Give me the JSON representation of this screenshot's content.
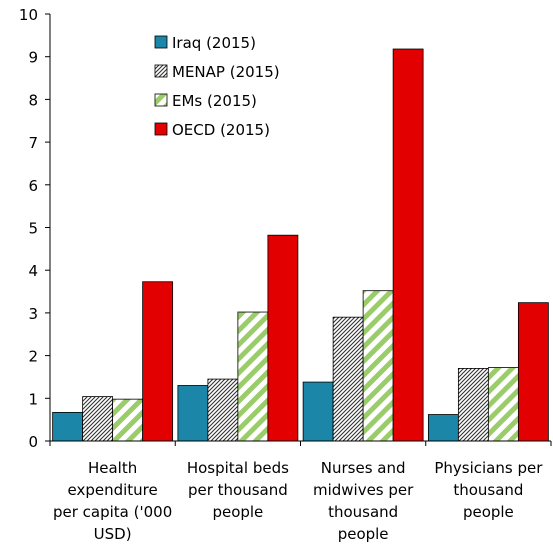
{
  "chart_data": {
    "type": "bar",
    "title": "",
    "xlabel": "",
    "ylabel": "",
    "ylim": [
      0,
      10
    ],
    "yticks": [
      "0",
      "1",
      "2",
      "3",
      "4",
      "5",
      "6",
      "7",
      "8",
      "9",
      "10"
    ],
    "grid": false,
    "legend_position": "top-left",
    "categories": [
      [
        "Health",
        "expenditure",
        "per capita ('000",
        "USD)"
      ],
      [
        "Hospital beds",
        "per thousand",
        "people"
      ],
      [
        "Nurses and",
        "midwives per",
        "thousand",
        "people"
      ],
      [
        "Physicians per",
        "thousand",
        "people"
      ]
    ],
    "series": [
      {
        "name": "Iraq (2015)",
        "values": [
          0.67,
          1.3,
          1.38,
          0.62
        ],
        "color": "#1b86a8",
        "fill": "solid"
      },
      {
        "name": "MENAP (2015)",
        "values": [
          1.04,
          1.45,
          2.9,
          1.7
        ],
        "color": "#555555",
        "fill": "dense-hatch"
      },
      {
        "name": "EMs (2015)",
        "values": [
          0.98,
          3.02,
          3.52,
          1.72
        ],
        "color": "#9bcc6a",
        "fill": "wide-stripe"
      },
      {
        "name": "OECD (2015)",
        "values": [
          3.73,
          4.82,
          9.18,
          3.24
        ],
        "color": "#e30000",
        "fill": "solid"
      }
    ]
  }
}
